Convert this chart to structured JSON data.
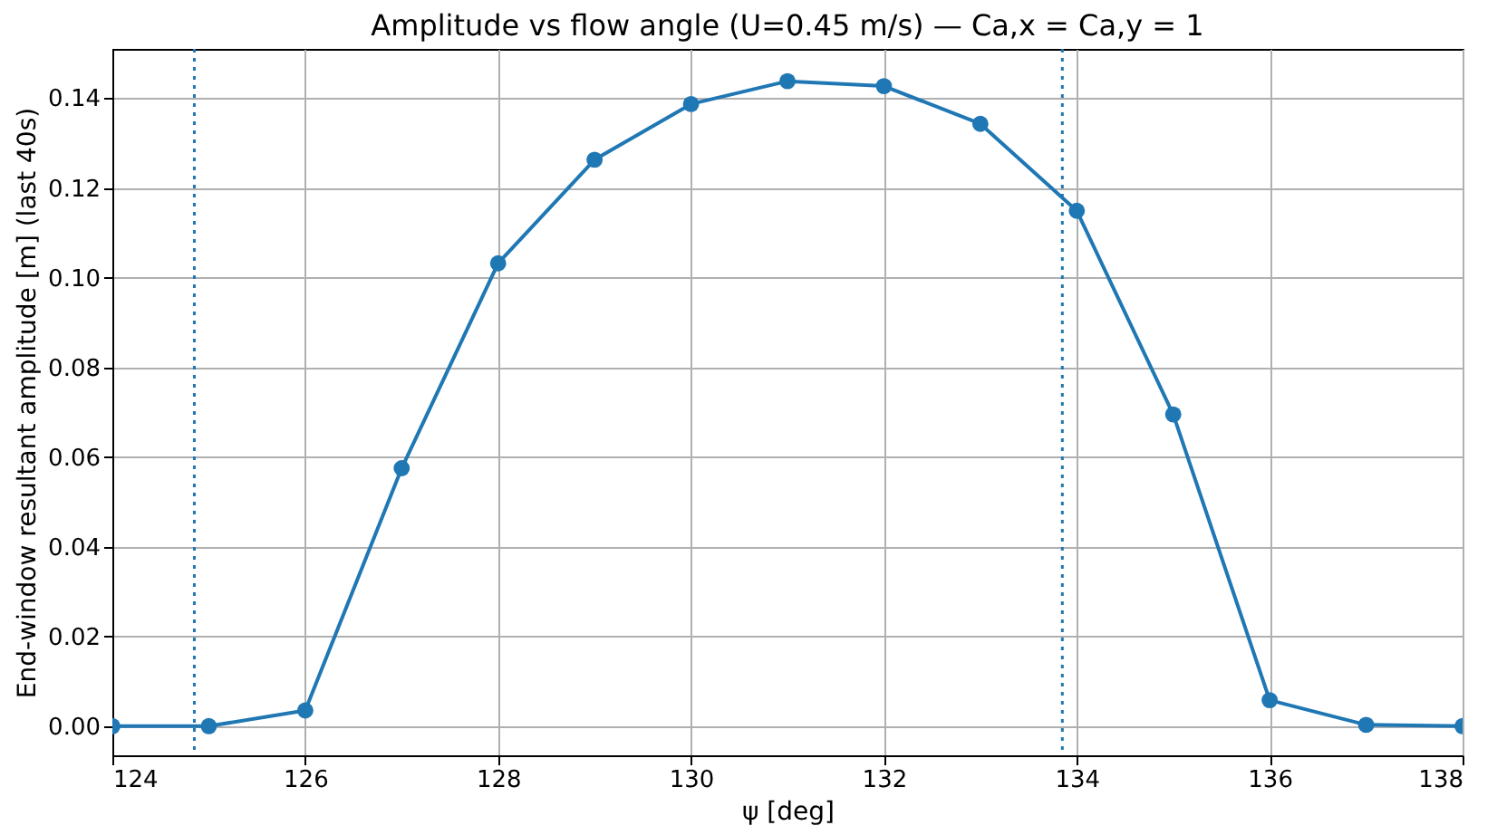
{
  "chart_data": {
    "type": "line",
    "title": "Amplitude vs flow angle (U=0.45 m/s) — Ca,x = Ca,y = 1",
    "xlabel": "ψ [deg]",
    "ylabel": "End-window resultant amplitude [m] (last 40s)",
    "x": [
      124,
      125,
      126,
      127,
      128,
      129,
      130,
      131,
      132,
      133,
      134,
      135,
      136,
      137,
      138
    ],
    "series": [
      {
        "color": "#1f77b4",
        "values": [
          0,
          0,
          0.0035,
          0.0575,
          0.1032,
          0.1263,
          0.1387,
          0.1438,
          0.1427,
          0.1343,
          0.1149,
          0.0695,
          0.0058,
          0.0003,
          0
        ]
      }
    ],
    "xlim": [
      124,
      138
    ],
    "xticks": [
      124,
      126,
      128,
      130,
      132,
      134,
      136,
      138
    ],
    "ylim": [
      -0.0065,
      0.151
    ],
    "yticks": [
      {
        "value": 0,
        "label": "0.00"
      },
      {
        "value": 0.02,
        "label": "0.02"
      },
      {
        "value": 0.04,
        "label": "0.04"
      },
      {
        "value": 0.06,
        "label": "0.06"
      },
      {
        "value": 0.08,
        "label": "0.08"
      },
      {
        "value": 0.1,
        "label": "0.10"
      },
      {
        "value": 0.12,
        "label": "0.12"
      },
      {
        "value": 0.14,
        "label": "0.14"
      }
    ],
    "ref_lines": [
      {
        "axis": "x",
        "value": 124.85,
        "color": "#1f77b4",
        "line_style": "dotted"
      },
      {
        "axis": "x",
        "value": 133.85,
        "color": "#1f77b4",
        "line_style": "dotted"
      }
    ],
    "grid": true,
    "marker": "circle",
    "line_style": "solid"
  }
}
